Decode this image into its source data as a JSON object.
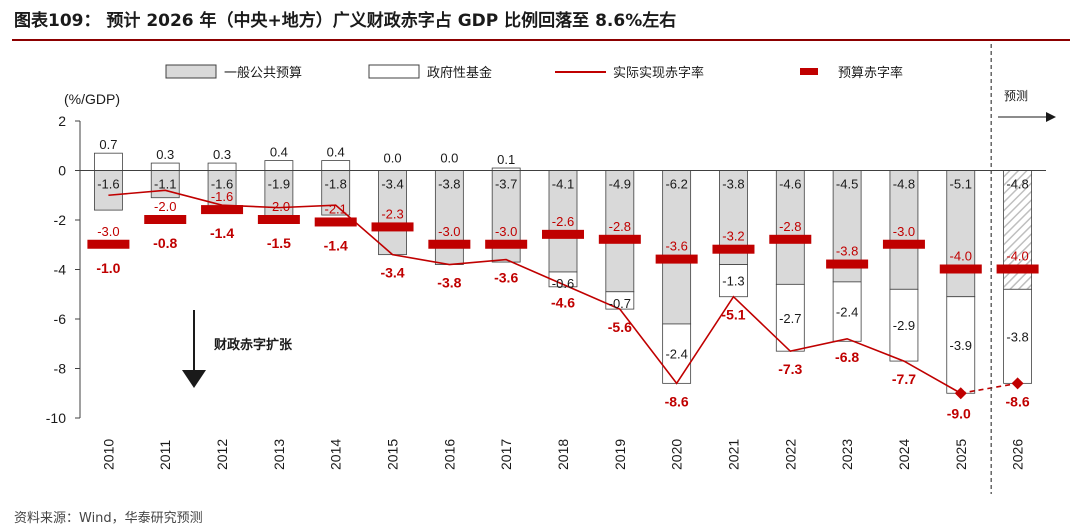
{
  "title": "图表109： 预计 2026 年（中央+地方）广义财政赤字占 GDP 比例回落至 8.6%左右",
  "source": "资料来源：Wind，华泰研究预测",
  "colors": {
    "general_budget": "#d9d9d9",
    "gov_fund": "#ffffff",
    "actual_line": "#c00000",
    "budget_marker": "#c00000",
    "bar_stroke": "#404040",
    "forecast_hatch": "#bfbfbf"
  },
  "chart_data": {
    "type": "bar",
    "ylabel": "(%/GDP)",
    "ylim": [
      -10,
      2
    ],
    "yticks": [
      2,
      0,
      -2,
      -4,
      -6,
      -8,
      -10
    ],
    "categories": [
      "2010",
      "2011",
      "2012",
      "2013",
      "2014",
      "2015",
      "2016",
      "2017",
      "2018",
      "2019",
      "2020",
      "2021",
      "2022",
      "2023",
      "2024",
      "2025",
      "2026"
    ],
    "series": [
      {
        "name": "一般公共预算",
        "kind": "bar",
        "values": [
          -1.6,
          -1.1,
          -1.6,
          -1.9,
          -1.8,
          -3.4,
          -3.8,
          -3.7,
          -4.1,
          -4.9,
          -6.2,
          -3.8,
          -4.6,
          -4.5,
          -4.8,
          -5.1,
          -4.8
        ],
        "labels": [
          "-1.6",
          "-1.1",
          "-1.6",
          "-1.9",
          "-1.8",
          "-3.4",
          "-3.8",
          "-3.7",
          "-4.1",
          "-4.9",
          "-6.2",
          "-3.8",
          "-4.6",
          "-4.5",
          "-4.8",
          "-5.1",
          "-4.8"
        ]
      },
      {
        "name": "政府性基金",
        "kind": "bar",
        "values": [
          0.7,
          0.3,
          0.3,
          0.4,
          0.4,
          0.0,
          0.0,
          0.1,
          -0.6,
          -0.7,
          -2.4,
          -1.3,
          -2.7,
          -2.4,
          -2.9,
          -3.9,
          -3.8
        ],
        "labels": [
          "0.7",
          "0.3",
          "0.3",
          "0.4",
          "0.4",
          "0.0",
          "0.0",
          "0.1",
          "-0.6",
          "-0.7",
          "-2.4",
          "-1.3",
          "-2.7",
          "-2.4",
          "-2.9",
          "-3.9",
          "-3.8"
        ]
      },
      {
        "name": "实际实现赤字率",
        "kind": "line",
        "values": [
          -1.0,
          -0.8,
          -1.4,
          -1.5,
          -1.4,
          -3.4,
          -3.8,
          -3.6,
          -4.6,
          -5.6,
          -8.6,
          -5.1,
          -7.3,
          -6.8,
          -7.7,
          -9.0,
          -8.6
        ],
        "labels": [
          "-1.0",
          "-0.8",
          "-1.4",
          "-1.5",
          "-1.4",
          "-3.4",
          "-3.8",
          "-3.6",
          "-4.6",
          "-5.6",
          "-8.6",
          "-5.1",
          "-7.3",
          "-6.8",
          "-7.7",
          "-9.0",
          "-8.6"
        ]
      },
      {
        "name": "预算赤字率",
        "kind": "marker",
        "values": [
          -3.0,
          -2.0,
          -1.6,
          -2.0,
          -2.1,
          -2.3,
          -3.0,
          -3.0,
          -2.6,
          -2.8,
          -3.6,
          -3.2,
          -2.8,
          -3.8,
          -3.0,
          -4.0,
          -4.0
        ],
        "labels": [
          "-3.0",
          "-2.0",
          "-1.6",
          "-2.0",
          "-2.1",
          "-2.3",
          "-3.0",
          "-3.0",
          "-2.6",
          "-2.8",
          "-3.6",
          "-3.2",
          "-2.8",
          "-3.8",
          "-3.0",
          "-4.0",
          "-4.0"
        ]
      }
    ],
    "forecast_from": "2026",
    "forecast_label": "预测",
    "annotation": "财政赤字扩张",
    "legend_position": "top",
    "grid": false
  }
}
